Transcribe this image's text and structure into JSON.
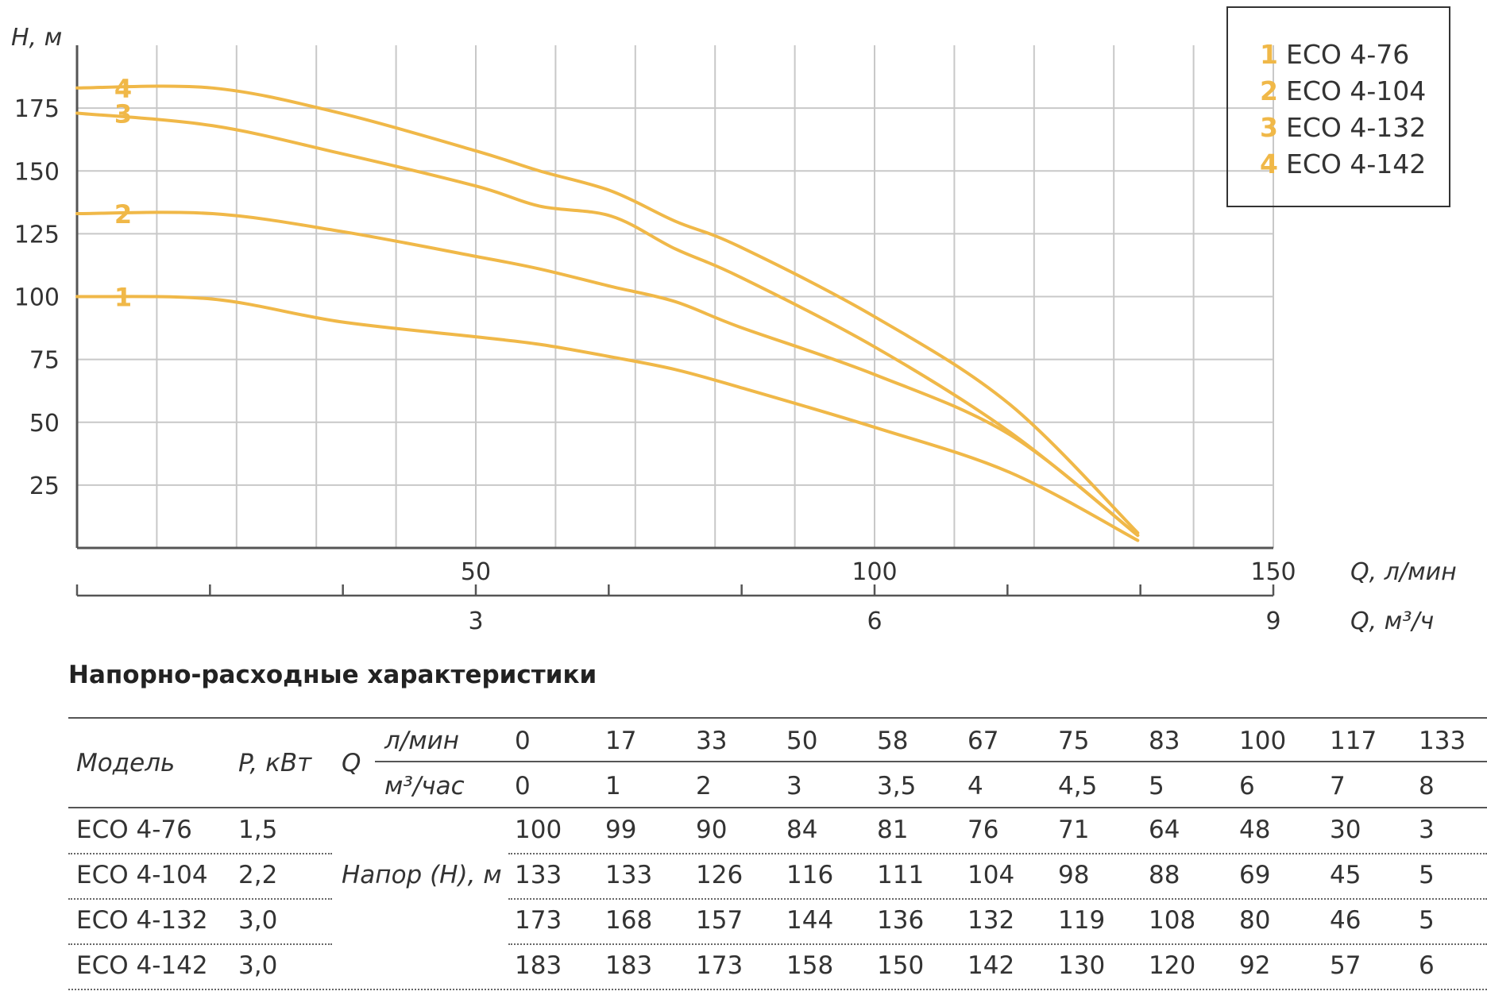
{
  "chart_data": {
    "type": "line",
    "ylabel": "H, м",
    "xlabel": "Q, л/мин",
    "xlabel2": "Q, м³/ч",
    "xlim": [
      0,
      150
    ],
    "ylim": [
      0,
      200
    ],
    "y_ticks": [
      25,
      50,
      75,
      100,
      125,
      150,
      175
    ],
    "x_ticks": [
      50,
      100,
      150
    ],
    "x2_ticks": [
      3,
      6,
      9
    ],
    "grid": true,
    "legend_position": "top-right",
    "series": [
      {
        "name": "ECO 4-76",
        "label": "1",
        "x": [
          0,
          17,
          33,
          50,
          58,
          67,
          75,
          83,
          100,
          117,
          133
        ],
        "y": [
          100,
          99,
          90,
          84,
          81,
          76,
          71,
          64,
          48,
          30,
          3
        ]
      },
      {
        "name": "ECO 4-104",
        "label": "2",
        "x": [
          0,
          17,
          33,
          50,
          58,
          67,
          75,
          83,
          100,
          117,
          133
        ],
        "y": [
          133,
          133,
          126,
          116,
          111,
          104,
          98,
          88,
          69,
          45,
          5
        ]
      },
      {
        "name": "ECO 4-132",
        "label": "3",
        "x": [
          0,
          17,
          33,
          50,
          58,
          67,
          75,
          83,
          100,
          117,
          133
        ],
        "y": [
          173,
          168,
          157,
          144,
          136,
          132,
          119,
          108,
          80,
          46,
          5
        ]
      },
      {
        "name": "ECO 4-142",
        "label": "4",
        "x": [
          0,
          17,
          33,
          50,
          58,
          67,
          75,
          83,
          100,
          117,
          133
        ],
        "y": [
          183,
          183,
          173,
          158,
          150,
          142,
          130,
          120,
          92,
          57,
          6
        ]
      }
    ]
  },
  "colors": {
    "curve": "#f0b848",
    "grid": "#c8c8c8",
    "axis": "#555555",
    "text": "#333333"
  },
  "legend": [
    {
      "num": "1",
      "name": "ECO 4-76"
    },
    {
      "num": "2",
      "name": "ECO 4-104"
    },
    {
      "num": "3",
      "name": "ECO 4-132"
    },
    {
      "num": "4",
      "name": "ECO 4-142"
    }
  ],
  "table": {
    "title": "Напорно-расходные характеристики",
    "model_header": "Модель",
    "power_header": "P, кВт",
    "q_header": "Q",
    "unit_lpm": "л/мин",
    "unit_m3": "м³/час",
    "head_label": "Напор (H), м",
    "flow_lpm": [
      "0",
      "17",
      "33",
      "50",
      "58",
      "67",
      "75",
      "83",
      "100",
      "117",
      "133"
    ],
    "flow_m3": [
      "0",
      "1",
      "2",
      "3",
      "3,5",
      "4",
      "4,5",
      "5",
      "6",
      "7",
      "8"
    ],
    "rows": [
      {
        "model": "ECO 4-76",
        "power": "1,5",
        "heads": [
          "100",
          "99",
          "90",
          "84",
          "81",
          "76",
          "71",
          "64",
          "48",
          "30",
          "3"
        ]
      },
      {
        "model": "ECO 4-104",
        "power": "2,2",
        "heads": [
          "133",
          "133",
          "126",
          "116",
          "111",
          "104",
          "98",
          "88",
          "69",
          "45",
          "5"
        ]
      },
      {
        "model": "ECO 4-132",
        "power": "3,0",
        "heads": [
          "173",
          "168",
          "157",
          "144",
          "136",
          "132",
          "119",
          "108",
          "80",
          "46",
          "5"
        ]
      },
      {
        "model": "ECO 4-142",
        "power": "3,0",
        "heads": [
          "183",
          "183",
          "173",
          "158",
          "150",
          "142",
          "130",
          "120",
          "92",
          "57",
          "6"
        ]
      }
    ]
  }
}
